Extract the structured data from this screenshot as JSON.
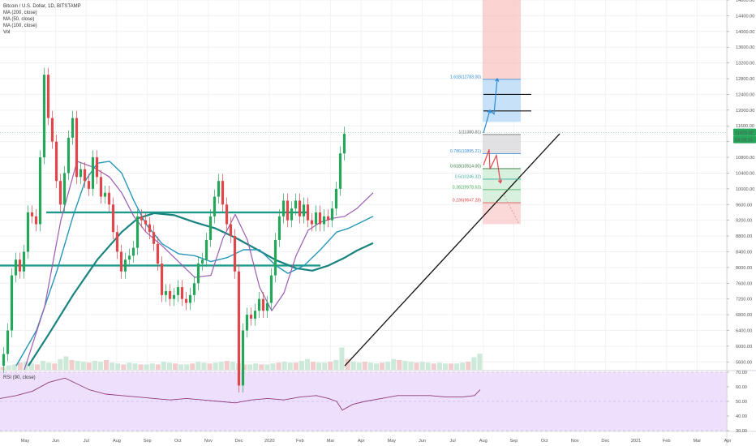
{
  "header": {
    "symbol": "Bitcoin / U.S. Dollar, 1D, BITSTAMP",
    "indicators": [
      "MA (200, close)",
      "MA (50, close)",
      "MA (100, close)",
      "Vol"
    ]
  },
  "rsi_label": "RSI (90, close)",
  "chart_data": {
    "type": "candlestick",
    "title": "Bitcoin / U.S. Dollar, 1D, BITSTAMP",
    "price_axis": {
      "ylim": [
        5400,
        14800
      ],
      "ticks": [
        "14800.00",
        "14400.00",
        "14000.00",
        "13600.00",
        "13200.00",
        "12800.00",
        "12400.00",
        "12000.00",
        "11600.00",
        "11200.00",
        "10800.00",
        "10400.00",
        "10000.00",
        "9600.00",
        "9200.00",
        "8800.00",
        "8400.00",
        "8000.00",
        "7600.00",
        "7200.00",
        "6800.00",
        "6400.00",
        "6000.00",
        "5600.00"
      ],
      "tick_values": [
        14800,
        14400,
        14000,
        13600,
        13200,
        12800,
        12400,
        12000,
        11600,
        11200,
        10800,
        10400,
        10000,
        9600,
        9200,
        8800,
        8400,
        8000,
        7600,
        7200,
        6800,
        6400,
        6000,
        5600
      ],
      "last_price_label": "11426.02",
      "countdown_label": "03:29:15",
      "last_price": 11426
    },
    "rsi_axis": {
      "ylim": [
        30,
        70
      ],
      "ticks": [
        "70.00",
        "60.00",
        "50.00",
        "40.00",
        "30.00"
      ],
      "tick_values": [
        70,
        60,
        50,
        40,
        30
      ]
    },
    "x_axis": {
      "labels": [
        "May",
        "Jun",
        "Jul",
        "Aug",
        "Sep",
        "Oct",
        "Nov",
        "Dec",
        "2020",
        "Feb",
        "Mar",
        "Apr",
        "May",
        "Jun",
        "Jul",
        "Aug",
        "Sep",
        "Oct",
        "Nov",
        "Dec",
        "2021",
        "Feb",
        "Mar",
        "Apr"
      ]
    },
    "price_path": [
      [
        0,
        5500
      ],
      [
        5,
        5800
      ],
      [
        10,
        6400
      ],
      [
        15,
        7800
      ],
      [
        20,
        8200
      ],
      [
        25,
        7900
      ],
      [
        30,
        8400
      ],
      [
        35,
        9400
      ],
      [
        40,
        9300
      ],
      [
        45,
        9100
      ],
      [
        50,
        10800
      ],
      [
        55,
        12900
      ],
      [
        60,
        11800
      ],
      [
        65,
        11200
      ],
      [
        70,
        10200
      ],
      [
        75,
        9600
      ],
      [
        80,
        10400
      ],
      [
        85,
        11300
      ],
      [
        90,
        11800
      ],
      [
        95,
        10300
      ],
      [
        100,
        10500
      ],
      [
        105,
        10200
      ],
      [
        110,
        10000
      ],
      [
        115,
        10800
      ],
      [
        120,
        10300
      ],
      [
        125,
        9800
      ],
      [
        130,
        9900
      ],
      [
        135,
        9600
      ],
      [
        140,
        8900
      ],
      [
        145,
        8400
      ],
      [
        150,
        7900
      ],
      [
        155,
        8200
      ],
      [
        160,
        8300
      ],
      [
        165,
        8500
      ],
      [
        170,
        9300
      ],
      [
        175,
        9200
      ],
      [
        180,
        9100
      ],
      [
        185,
        8900
      ],
      [
        190,
        8600
      ],
      [
        195,
        8100
      ],
      [
        200,
        7300
      ],
      [
        205,
        7400
      ],
      [
        210,
        7200
      ],
      [
        215,
        7300
      ],
      [
        220,
        7500
      ],
      [
        225,
        7200
      ],
      [
        230,
        7100
      ],
      [
        235,
        7300
      ],
      [
        240,
        7600
      ],
      [
        245,
        8100
      ],
      [
        250,
        8200
      ],
      [
        255,
        8700
      ],
      [
        260,
        9300
      ],
      [
        265,
        9800
      ],
      [
        270,
        10200
      ],
      [
        275,
        9600
      ],
      [
        280,
        9100
      ],
      [
        285,
        8800
      ],
      [
        290,
        7900
      ],
      [
        295,
        5000
      ],
      [
        300,
        6400
      ],
      [
        305,
        6800
      ],
      [
        310,
        6700
      ],
      [
        315,
        6900
      ],
      [
        320,
        7200
      ],
      [
        325,
        6900
      ],
      [
        330,
        7100
      ],
      [
        335,
        7800
      ],
      [
        340,
        8700
      ],
      [
        345,
        9300
      ],
      [
        350,
        9700
      ],
      [
        355,
        9200
      ],
      [
        360,
        9500
      ],
      [
        365,
        9700
      ],
      [
        370,
        9300
      ],
      [
        375,
        9600
      ],
      [
        380,
        9200
      ],
      [
        385,
        9100
      ],
      [
        390,
        9400
      ],
      [
        395,
        9100
      ],
      [
        400,
        9300
      ],
      [
        405,
        9200
      ],
      [
        410,
        9500
      ],
      [
        415,
        10000
      ],
      [
        420,
        10900
      ],
      [
        425,
        11400
      ]
    ],
    "volume": [
      3,
      5,
      6,
      8,
      9,
      7,
      6,
      10,
      8,
      7,
      12,
      15,
      11,
      10,
      9,
      8,
      10,
      9,
      11,
      8,
      7,
      6,
      8,
      7,
      6,
      6,
      7,
      6,
      9,
      8,
      7,
      6,
      6,
      7,
      9,
      8,
      7,
      8,
      9,
      10,
      9,
      7,
      6,
      6,
      7,
      6,
      6,
      7,
      8,
      9,
      8,
      8,
      10,
      12,
      9,
      8,
      8,
      9,
      11,
      25,
      12,
      9,
      8,
      9,
      8,
      7,
      8,
      9,
      12,
      11,
      10,
      9,
      8,
      9,
      8,
      7,
      8,
      7,
      7,
      7,
      8,
      9,
      14,
      18
    ],
    "ma_200": [
      [
        35,
        5500
      ],
      [
        60,
        6300
      ],
      [
        90,
        7300
      ],
      [
        120,
        8200
      ],
      [
        150,
        8900
      ],
      [
        170,
        9250
      ],
      [
        190,
        9380
      ],
      [
        215,
        9330
      ],
      [
        240,
        9150
      ],
      [
        265,
        9000
      ],
      [
        290,
        8760
      ],
      [
        315,
        8480
      ],
      [
        340,
        8190
      ],
      [
        365,
        7980
      ],
      [
        385,
        7920
      ],
      [
        405,
        8050
      ],
      [
        425,
        8250
      ],
      [
        440,
        8430
      ],
      [
        460,
        8620
      ]
    ],
    "ma_50": [
      [
        30,
        5400
      ],
      [
        55,
        7000
      ],
      [
        75,
        9200
      ],
      [
        95,
        10700
      ],
      [
        115,
        10550
      ],
      [
        135,
        10300
      ],
      [
        150,
        9900
      ],
      [
        165,
        9300
      ],
      [
        180,
        8900
      ],
      [
        200,
        8550
      ],
      [
        220,
        8150
      ],
      [
        240,
        7750
      ],
      [
        260,
        7800
      ],
      [
        275,
        8750
      ],
      [
        290,
        9350
      ],
      [
        305,
        8700
      ],
      [
        320,
        7500
      ],
      [
        335,
        6900
      ],
      [
        350,
        7350
      ],
      [
        365,
        8300
      ],
      [
        380,
        8950
      ],
      [
        395,
        9150
      ],
      [
        410,
        9250
      ],
      [
        425,
        9300
      ],
      [
        440,
        9500
      ],
      [
        460,
        9900
      ]
    ],
    "ma_100": [
      [
        20,
        5500
      ],
      [
        45,
        6400
      ],
      [
        70,
        7900
      ],
      [
        90,
        9300
      ],
      [
        105,
        10200
      ],
      [
        120,
        10650
      ],
      [
        135,
        10700
      ],
      [
        150,
        10400
      ],
      [
        165,
        9700
      ],
      [
        180,
        9100
      ],
      [
        200,
        8600
      ],
      [
        220,
        8350
      ],
      [
        240,
        8300
      ],
      [
        260,
        8150
      ],
      [
        280,
        8250
      ],
      [
        300,
        8450
      ],
      [
        320,
        8450
      ],
      [
        340,
        8050
      ],
      [
        355,
        7850
      ],
      [
        375,
        8050
      ],
      [
        395,
        8450
      ],
      [
        415,
        8900
      ],
      [
        430,
        9000
      ],
      [
        445,
        9150
      ],
      [
        460,
        9300
      ]
    ],
    "horizontal_levels": [
      {
        "x_start": 57,
        "x_end": 380,
        "price": 9400
      },
      {
        "x_start": 0,
        "x_end": 395,
        "price": 8050
      }
    ],
    "trendline": [
      [
        425,
        5500
      ],
      [
        690,
        11400
      ]
    ],
    "short_levels": [
      {
        "price": 12400,
        "x_start": 596,
        "x_end": 655
      },
      {
        "price": 11980,
        "x_start": 596,
        "x_end": 655
      }
    ],
    "fibonacci": [
      {
        "label": "1.618(12783.00)",
        "price": 12783,
        "color": "#2a8ad6"
      },
      {
        "label": "1(11380.81)",
        "price": 11381,
        "color": "#666666"
      },
      {
        "label": "0.786(10895.21)",
        "price": 10895,
        "color": "#3a8bd8"
      },
      {
        "label": "0.618(10514.00)",
        "price": 10514,
        "color": "#2c7a3a"
      },
      {
        "label": "0.5(10246.32)",
        "price": 10246,
        "color": "#3aa89a"
      },
      {
        "label": "0.382(9978.63)",
        "price": 9979,
        "color": "#44aa55"
      },
      {
        "label": "0.236(9647.28)",
        "price": 9647,
        "color": "#e04040"
      }
    ],
    "rsi": [
      [
        0,
        52
      ],
      [
        20,
        54
      ],
      [
        40,
        57
      ],
      [
        60,
        63
      ],
      [
        80,
        66
      ],
      [
        95,
        62
      ],
      [
        110,
        58
      ],
      [
        130,
        55
      ],
      [
        150,
        54
      ],
      [
        170,
        53
      ],
      [
        190,
        52
      ],
      [
        210,
        51
      ],
      [
        230,
        52
      ],
      [
        250,
        51
      ],
      [
        270,
        50
      ],
      [
        290,
        49
      ],
      [
        310,
        51
      ],
      [
        330,
        52
      ],
      [
        350,
        51
      ],
      [
        370,
        53
      ],
      [
        390,
        54
      ],
      [
        405,
        52
      ],
      [
        415,
        50
      ],
      [
        422,
        44
      ],
      [
        435,
        48
      ],
      [
        450,
        50
      ],
      [
        470,
        52
      ],
      [
        490,
        54
      ],
      [
        510,
        54
      ],
      [
        530,
        54
      ],
      [
        550,
        53
      ],
      [
        570,
        53
      ],
      [
        585,
        54
      ],
      [
        592,
        58
      ]
    ]
  }
}
